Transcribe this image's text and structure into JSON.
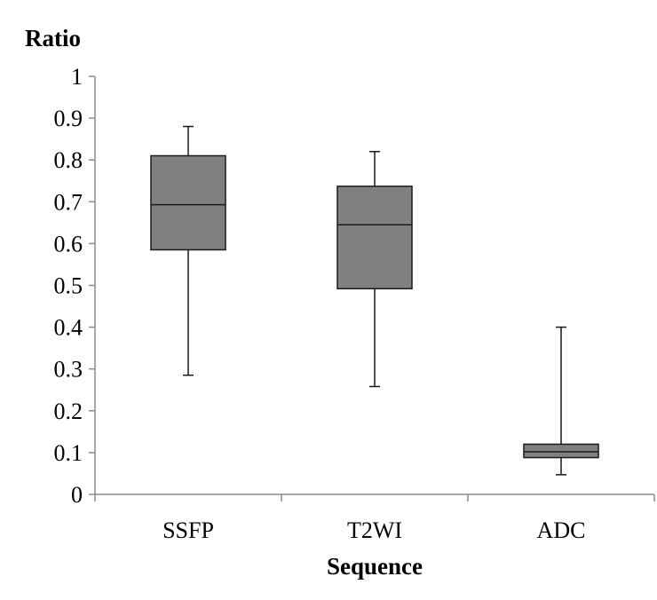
{
  "chart_data": {
    "type": "box",
    "ylabel": "Ratio",
    "xlabel": "Sequence",
    "ylim": [
      0,
      1
    ],
    "yticks": [
      "0",
      "0.1",
      "0.2",
      "0.3",
      "0.4",
      "0.5",
      "0.6",
      "0.7",
      "0.8",
      "0.9",
      "1"
    ],
    "categories": [
      "SSFP",
      "T2WI",
      "ADC"
    ],
    "boxes": [
      {
        "category": "SSFP",
        "min": 0.285,
        "q1": 0.585,
        "median": 0.693,
        "q3": 0.81,
        "max": 0.88
      },
      {
        "category": "T2WI",
        "min": 0.258,
        "q1": 0.492,
        "median": 0.645,
        "q3": 0.737,
        "max": 0.82
      },
      {
        "category": "ADC",
        "min": 0.047,
        "q1": 0.088,
        "median": 0.102,
        "q3": 0.12,
        "max": 0.4
      }
    ],
    "box_color": "#808080",
    "grid": false,
    "legend": "none"
  }
}
